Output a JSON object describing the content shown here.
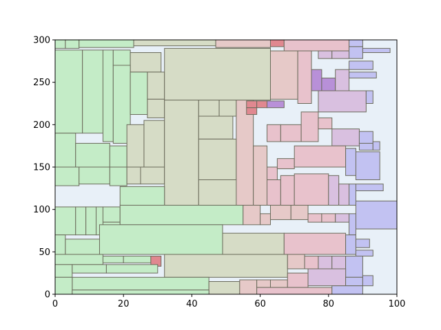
{
  "chart_data": {
    "type": "treemap",
    "title": "",
    "xlabel": "",
    "ylabel": "",
    "xlim": [
      0,
      100
    ],
    "ylim": [
      0,
      300
    ],
    "x_ticks": [
      "0",
      "20",
      "40",
      "60",
      "80",
      "100"
    ],
    "y_ticks": [
      "0",
      "50",
      "100",
      "150",
      "200",
      "250",
      "300"
    ],
    "grid": false,
    "legend": "none",
    "background_color": "#e8f0f8",
    "colors": {
      "green": "#c4ecc7",
      "olive": "#d6dcc6",
      "rose": "#e6c9c8",
      "pink": "#e8c2cc",
      "mauve": "#d9c0e0",
      "blue": "#c2c2f2",
      "red": "#e08890",
      "purple": "#b890d8"
    },
    "rects": [
      {
        "x0": 0,
        "x1": 3,
        "y0": 290,
        "y1": 300,
        "c": "green"
      },
      {
        "x0": 3,
        "x1": 7,
        "y0": 290,
        "y1": 300,
        "c": "green"
      },
      {
        "x0": 7,
        "x1": 23,
        "y0": 291,
        "y1": 300,
        "c": "green"
      },
      {
        "x0": 23,
        "x1": 47,
        "y0": 293,
        "y1": 300,
        "c": "olive"
      },
      {
        "x0": 47,
        "x1": 63,
        "y0": 291,
        "y1": 300,
        "c": "rose"
      },
      {
        "x0": 63,
        "x1": 67,
        "y0": 292,
        "y1": 300,
        "c": "red"
      },
      {
        "x0": 67,
        "x1": 86,
        "y0": 287,
        "y1": 300,
        "c": "pink"
      },
      {
        "x0": 86,
        "x1": 90,
        "y0": 292,
        "y1": 300,
        "c": "blue"
      },
      {
        "x0": 0,
        "x1": 8,
        "y0": 190,
        "y1": 288,
        "c": "green"
      },
      {
        "x0": 8,
        "x1": 14,
        "y0": 190,
        "y1": 288,
        "c": "green"
      },
      {
        "x0": 14,
        "x1": 17,
        "y0": 180,
        "y1": 288,
        "c": "green"
      },
      {
        "x0": 17,
        "x1": 22,
        "y0": 270,
        "y1": 288,
        "c": "green"
      },
      {
        "x0": 22,
        "x1": 31,
        "y0": 262,
        "y1": 285,
        "c": "olive"
      },
      {
        "x0": 17,
        "x1": 22,
        "y0": 178,
        "y1": 270,
        "c": "green"
      },
      {
        "x0": 22,
        "x1": 27,
        "y0": 212,
        "y1": 262,
        "c": "green"
      },
      {
        "x0": 27,
        "x1": 32,
        "y0": 230,
        "y1": 262,
        "c": "olive"
      },
      {
        "x0": 27,
        "x1": 32,
        "y0": 208,
        "y1": 230,
        "c": "olive"
      },
      {
        "x0": 0,
        "x1": 6,
        "y0": 148,
        "y1": 190,
        "c": "green"
      },
      {
        "x0": 6,
        "x1": 16,
        "y0": 150,
        "y1": 178,
        "c": "green"
      },
      {
        "x0": 16,
        "x1": 21,
        "y0": 150,
        "y1": 175,
        "c": "green"
      },
      {
        "x0": 21,
        "x1": 26,
        "y0": 150,
        "y1": 200,
        "c": "olive"
      },
      {
        "x0": 26,
        "x1": 32,
        "y0": 150,
        "y1": 205,
        "c": "olive"
      },
      {
        "x0": 0,
        "x1": 7,
        "y0": 128,
        "y1": 150,
        "c": "green"
      },
      {
        "x0": 7,
        "x1": 16,
        "y0": 130,
        "y1": 150,
        "c": "green"
      },
      {
        "x0": 16,
        "x1": 21,
        "y0": 128,
        "y1": 150,
        "c": "green"
      },
      {
        "x0": 21,
        "x1": 25,
        "y0": 130,
        "y1": 150,
        "c": "olive"
      },
      {
        "x0": 25,
        "x1": 32,
        "y0": 130,
        "y1": 150,
        "c": "olive"
      },
      {
        "x0": 32,
        "x1": 63,
        "y0": 229,
        "y1": 290,
        "c": "olive"
      },
      {
        "x0": 32,
        "x1": 42,
        "y0": 105,
        "y1": 229,
        "c": "olive"
      },
      {
        "x0": 42,
        "x1": 48,
        "y0": 210,
        "y1": 229,
        "c": "olive"
      },
      {
        "x0": 48,
        "x1": 53,
        "y0": 210,
        "y1": 229,
        "c": "olive"
      },
      {
        "x0": 42,
        "x1": 52,
        "y0": 183,
        "y1": 210,
        "c": "olive"
      },
      {
        "x0": 42,
        "x1": 53,
        "y0": 135,
        "y1": 183,
        "c": "olive"
      },
      {
        "x0": 42,
        "x1": 54,
        "y0": 105,
        "y1": 135,
        "c": "olive"
      },
      {
        "x0": 53,
        "x1": 58,
        "y0": 105,
        "y1": 229,
        "c": "rose"
      },
      {
        "x0": 58,
        "x1": 62,
        "y0": 105,
        "y1": 175,
        "c": "rose"
      },
      {
        "x0": 62,
        "x1": 65,
        "y0": 120,
        "y1": 150,
        "c": "pink"
      },
      {
        "x0": 63,
        "x1": 71,
        "y0": 230,
        "y1": 287,
        "c": "rose"
      },
      {
        "x0": 56,
        "x1": 59,
        "y0": 220,
        "y1": 228,
        "c": "red"
      },
      {
        "x0": 59,
        "x1": 62,
        "y0": 220,
        "y1": 228,
        "c": "red"
      },
      {
        "x0": 62,
        "x1": 67,
        "y0": 220,
        "y1": 228,
        "c": "purple"
      },
      {
        "x0": 56,
        "x1": 59,
        "y0": 212,
        "y1": 220,
        "c": "red"
      },
      {
        "x0": 62,
        "x1": 66,
        "y0": 180,
        "y1": 200,
        "c": "pink"
      },
      {
        "x0": 66,
        "x1": 72,
        "y0": 180,
        "y1": 200,
        "c": "pink"
      },
      {
        "x0": 65,
        "x1": 70,
        "y0": 148,
        "y1": 160,
        "c": "pink"
      },
      {
        "x0": 62,
        "x1": 66,
        "y0": 105,
        "y1": 135,
        "c": "pink"
      },
      {
        "x0": 66,
        "x1": 70,
        "y0": 105,
        "y1": 140,
        "c": "pink"
      },
      {
        "x0": 71,
        "x1": 75,
        "y0": 225,
        "y1": 287,
        "c": "pink"
      },
      {
        "x0": 75,
        "x1": 78,
        "y0": 240,
        "y1": 265,
        "c": "purple"
      },
      {
        "x0": 78,
        "x1": 82,
        "y0": 240,
        "y1": 255,
        "c": "purple"
      },
      {
        "x0": 82,
        "x1": 86,
        "y0": 240,
        "y1": 265,
        "c": "mauve"
      },
      {
        "x0": 77,
        "x1": 81,
        "y0": 278,
        "y1": 287,
        "c": "mauve"
      },
      {
        "x0": 81,
        "x1": 86,
        "y0": 278,
        "y1": 287,
        "c": "mauve"
      },
      {
        "x0": 86,
        "x1": 90,
        "y0": 278,
        "y1": 292,
        "c": "blue"
      },
      {
        "x0": 90,
        "x1": 98,
        "y0": 285,
        "y1": 290,
        "c": "blue"
      },
      {
        "x0": 86,
        "x1": 93,
        "y0": 265,
        "y1": 275,
        "c": "blue"
      },
      {
        "x0": 86,
        "x1": 94,
        "y0": 255,
        "y1": 262,
        "c": "blue"
      },
      {
        "x0": 77,
        "x1": 91,
        "y0": 215,
        "y1": 240,
        "c": "mauve"
      },
      {
        "x0": 91,
        "x1": 93,
        "y0": 225,
        "y1": 240,
        "c": "blue"
      },
      {
        "x0": 72,
        "x1": 77,
        "y0": 180,
        "y1": 215,
        "c": "pink"
      },
      {
        "x0": 77,
        "x1": 81,
        "y0": 195,
        "y1": 208,
        "c": "pink"
      },
      {
        "x0": 81,
        "x1": 89,
        "y0": 175,
        "y1": 195,
        "c": "mauve"
      },
      {
        "x0": 89,
        "x1": 93,
        "y0": 178,
        "y1": 192,
        "c": "blue"
      },
      {
        "x0": 89,
        "x1": 93,
        "y0": 170,
        "y1": 178,
        "c": "blue"
      },
      {
        "x0": 93,
        "x1": 95,
        "y0": 170,
        "y1": 180,
        "c": "blue"
      },
      {
        "x0": 70,
        "x1": 85,
        "y0": 150,
        "y1": 175,
        "c": "pink"
      },
      {
        "x0": 85,
        "x1": 88,
        "y0": 140,
        "y1": 172,
        "c": "blue"
      },
      {
        "x0": 88,
        "x1": 95,
        "y0": 135,
        "y1": 168,
        "c": "blue"
      },
      {
        "x0": 70,
        "x1": 80,
        "y0": 105,
        "y1": 142,
        "c": "pink"
      },
      {
        "x0": 80,
        "x1": 83,
        "y0": 105,
        "y1": 140,
        "c": "mauve"
      },
      {
        "x0": 83,
        "x1": 86,
        "y0": 105,
        "y1": 130,
        "c": "mauve"
      },
      {
        "x0": 86,
        "x1": 88,
        "y0": 105,
        "y1": 130,
        "c": "blue"
      },
      {
        "x0": 88,
        "x1": 96,
        "y0": 122,
        "y1": 130,
        "c": "blue"
      },
      {
        "x0": 88,
        "x1": 100,
        "y0": 77,
        "y1": 110,
        "c": "blue"
      },
      {
        "x0": 0,
        "x1": 6,
        "y0": 70,
        "y1": 103,
        "c": "green"
      },
      {
        "x0": 6,
        "x1": 9,
        "y0": 70,
        "y1": 103,
        "c": "green"
      },
      {
        "x0": 9,
        "x1": 12,
        "y0": 70,
        "y1": 103,
        "c": "green"
      },
      {
        "x0": 12,
        "x1": 14,
        "y0": 70,
        "y1": 103,
        "c": "green"
      },
      {
        "x0": 14,
        "x1": 19,
        "y0": 85,
        "y1": 103,
        "c": "green"
      },
      {
        "x0": 14,
        "x1": 19,
        "y0": 70,
        "y1": 85,
        "c": "green"
      },
      {
        "x0": 19,
        "x1": 32,
        "y0": 105,
        "y1": 127,
        "c": "green"
      },
      {
        "x0": 19,
        "x1": 55,
        "y0": 82,
        "y1": 105,
        "c": "green"
      },
      {
        "x0": 55,
        "x1": 60,
        "y0": 82,
        "y1": 105,
        "c": "rose"
      },
      {
        "x0": 60,
        "x1": 63,
        "y0": 82,
        "y1": 95,
        "c": "rose"
      },
      {
        "x0": 63,
        "x1": 69,
        "y0": 88,
        "y1": 105,
        "c": "rose"
      },
      {
        "x0": 69,
        "x1": 74,
        "y0": 88,
        "y1": 105,
        "c": "rose"
      },
      {
        "x0": 74,
        "x1": 78,
        "y0": 85,
        "y1": 95,
        "c": "pink"
      },
      {
        "x0": 78,
        "x1": 82,
        "y0": 85,
        "y1": 95,
        "c": "pink"
      },
      {
        "x0": 82,
        "x1": 86,
        "y0": 85,
        "y1": 95,
        "c": "mauve"
      },
      {
        "x0": 86,
        "x1": 88,
        "y0": 70,
        "y1": 95,
        "c": "blue"
      },
      {
        "x0": 0,
        "x1": 3,
        "y0": 47,
        "y1": 70,
        "c": "green"
      },
      {
        "x0": 3,
        "x1": 13,
        "y0": 47,
        "y1": 65,
        "c": "green"
      },
      {
        "x0": 13,
        "x1": 49,
        "y0": 47,
        "y1": 82,
        "c": "green"
      },
      {
        "x0": 49,
        "x1": 67,
        "y0": 47,
        "y1": 72,
        "c": "olive"
      },
      {
        "x0": 67,
        "x1": 85,
        "y0": 47,
        "y1": 72,
        "c": "pink"
      },
      {
        "x0": 85,
        "x1": 88,
        "y0": 47,
        "y1": 70,
        "c": "blue"
      },
      {
        "x0": 88,
        "x1": 92,
        "y0": 55,
        "y1": 65,
        "c": "blue"
      },
      {
        "x0": 88,
        "x1": 93,
        "y0": 45,
        "y1": 52,
        "c": "blue"
      },
      {
        "x0": 0,
        "x1": 14,
        "y0": 35,
        "y1": 47,
        "c": "green"
      },
      {
        "x0": 14,
        "x1": 20,
        "y0": 37,
        "y1": 45,
        "c": "green"
      },
      {
        "x0": 20,
        "x1": 28,
        "y0": 37,
        "y1": 45,
        "c": "green"
      },
      {
        "x0": 28,
        "x1": 31,
        "y0": 33,
        "y1": 45,
        "c": "red"
      },
      {
        "x0": 32,
        "x1": 68,
        "y0": 20,
        "y1": 47,
        "c": "olive"
      },
      {
        "x0": 68,
        "x1": 73,
        "y0": 30,
        "y1": 47,
        "c": "rose"
      },
      {
        "x0": 73,
        "x1": 77,
        "y0": 30,
        "y1": 45,
        "c": "pink"
      },
      {
        "x0": 77,
        "x1": 81,
        "y0": 30,
        "y1": 45,
        "c": "mauve"
      },
      {
        "x0": 81,
        "x1": 85,
        "y0": 30,
        "y1": 45,
        "c": "mauve"
      },
      {
        "x0": 85,
        "x1": 90,
        "y0": 20,
        "y1": 45,
        "c": "blue"
      },
      {
        "x0": 0,
        "x1": 5,
        "y0": 20,
        "y1": 35,
        "c": "green"
      },
      {
        "x0": 5,
        "x1": 15,
        "y0": 25,
        "y1": 35,
        "c": "green"
      },
      {
        "x0": 15,
        "x1": 30,
        "y0": 25,
        "y1": 35,
        "c": "green"
      },
      {
        "x0": 5,
        "x1": 45,
        "y0": 5,
        "y1": 20,
        "c": "green"
      },
      {
        "x0": 45,
        "x1": 54,
        "y0": 0,
        "y1": 15,
        "c": "olive"
      },
      {
        "x0": 54,
        "x1": 59,
        "y0": 0,
        "y1": 17,
        "c": "rose"
      },
      {
        "x0": 59,
        "x1": 63,
        "y0": 8,
        "y1": 17,
        "c": "rose"
      },
      {
        "x0": 63,
        "x1": 68,
        "y0": 8,
        "y1": 17,
        "c": "rose"
      },
      {
        "x0": 68,
        "x1": 74,
        "y0": 8,
        "y1": 25,
        "c": "pink"
      },
      {
        "x0": 74,
        "x1": 85,
        "y0": 10,
        "y1": 30,
        "c": "mauve"
      },
      {
        "x0": 85,
        "x1": 90,
        "y0": 10,
        "y1": 20,
        "c": "blue"
      },
      {
        "x0": 90,
        "x1": 93,
        "y0": 10,
        "y1": 22,
        "c": "blue"
      },
      {
        "x0": 0,
        "x1": 5,
        "y0": 0,
        "y1": 20,
        "c": "green"
      },
      {
        "x0": 5,
        "x1": 45,
        "y0": 0,
        "y1": 5,
        "c": "green"
      },
      {
        "x0": 59,
        "x1": 81,
        "y0": 0,
        "y1": 8,
        "c": "pink"
      },
      {
        "x0": 81,
        "x1": 90,
        "y0": 0,
        "y1": 10,
        "c": "blue"
      }
    ]
  }
}
